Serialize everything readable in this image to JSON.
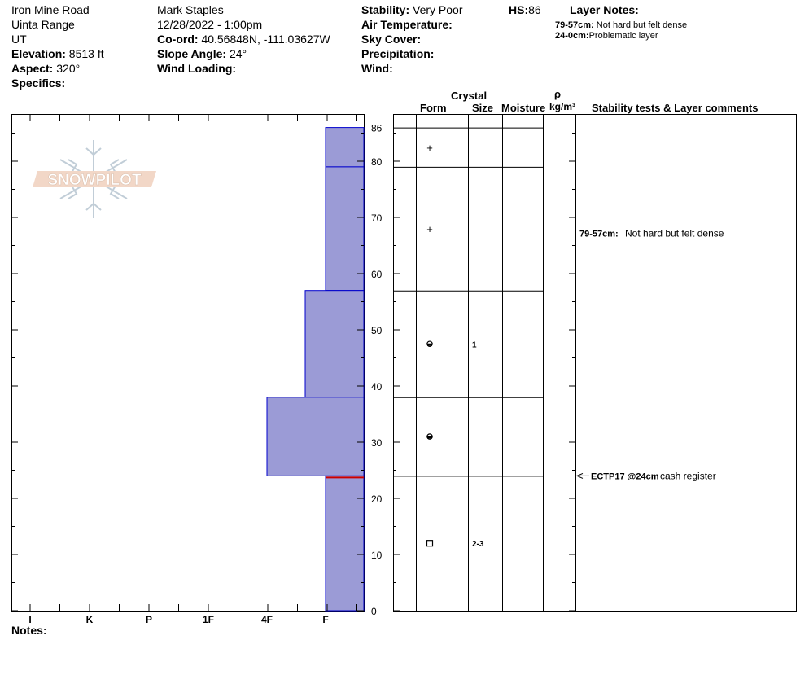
{
  "header": {
    "location": "Iron Mine Road",
    "range": "Uinta Range",
    "state": "UT",
    "elevation_label": "Elevation:",
    "elevation_value": "8513 ft",
    "aspect_label": "Aspect:",
    "aspect_value": "320°",
    "specifics_label": "Specifics:",
    "observer": "Mark Staples",
    "datetime": "12/28/2022 - 1:00pm",
    "coord_label": "Co-ord:",
    "coord_value": "40.56848N, -111.03627W",
    "slope_label": "Slope Angle:",
    "slope_value": "24°",
    "wind_loading_label": "Wind Loading:",
    "stability_label": "Stability:",
    "stability_value": "Very Poor",
    "air_temp_label": "Air Temperature:",
    "sky_label": "Sky Cover:",
    "precip_label": "Precipitation:",
    "wind_label": "Wind:",
    "hs_label": "HS:",
    "hs_value": "86",
    "layer_notes_label": "Layer Notes:",
    "layer_notes": [
      {
        "range": "79-57cm:",
        "text": "Not hard but felt dense"
      },
      {
        "range": "24-0cm:",
        "text": "Problematic layer"
      }
    ]
  },
  "logo_text": "SNOWPILOT",
  "columns": {
    "crystal": "Crystal",
    "form": "Form",
    "size": "Size",
    "moisture": "Moisture",
    "rho": "ρ",
    "density_unit": "kg/m³",
    "stability_comments": "Stability tests & Layer comments"
  },
  "notes_label": "Notes:",
  "chart_data": {
    "type": "bar",
    "description_axis": "depth_cm",
    "ylim": [
      0,
      86
    ],
    "yticks": [
      0,
      10,
      20,
      30,
      40,
      50,
      60,
      70,
      80
    ],
    "hs_tick": "86",
    "hardness_scale": [
      "I",
      "K",
      "P",
      "1F",
      "4F",
      "F"
    ],
    "layers": [
      {
        "top": 86,
        "bottom": 79,
        "hardness": 1.0,
        "form": "+",
        "size": ""
      },
      {
        "top": 79,
        "bottom": 57,
        "hardness": 1.0,
        "form": "+",
        "size": ""
      },
      {
        "top": 57,
        "bottom": 38,
        "hardness": 1.33,
        "form": "rounded",
        "size": "1"
      },
      {
        "top": 38,
        "bottom": 24,
        "hardness": 2.0,
        "form": "rounded",
        "size": ""
      },
      {
        "top": 24,
        "bottom": 0,
        "hardness": 1.0,
        "form": "square",
        "size": "2-3"
      }
    ],
    "comments": [
      {
        "depth": 68,
        "range": "79-57cm:",
        "text": "Not hard but felt dense",
        "arrow": false
      },
      {
        "depth": 24,
        "range": "ECTP17 @24cm",
        "text": "cash register",
        "arrow": true
      }
    ],
    "problem_layer_depth": 24,
    "colors": {
      "fill": "#9b9bd6",
      "edge": "#0000cc",
      "problem": "#cc0000"
    }
  }
}
